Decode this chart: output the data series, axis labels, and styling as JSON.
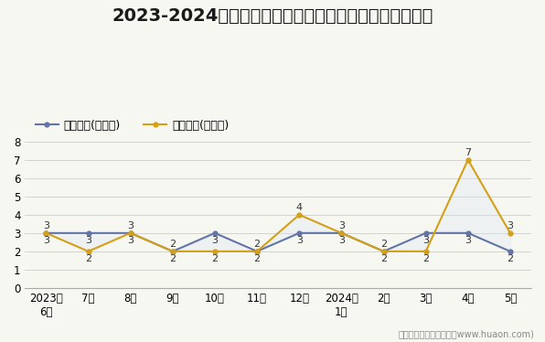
{
  "title": "2023-2024年营口市商品收发货人所在地进、出口额统计",
  "x_labels": [
    "2023年\n6月",
    "7月",
    "8月",
    "9月",
    "10月",
    "11月",
    "12月",
    "2024年\n1月",
    "2月",
    "3月",
    "4月",
    "5月"
  ],
  "export_values": [
    3,
    3,
    3,
    2,
    3,
    2,
    3,
    3,
    2,
    3,
    3,
    2
  ],
  "import_values": [
    3,
    2,
    3,
    2,
    2,
    2,
    4,
    3,
    2,
    2,
    7,
    3
  ],
  "export_label": "出口总额(亿美元)",
  "import_label": "进口总额(亿美元)",
  "export_color": "#6375a8",
  "import_color": "#d4a017",
  "fill_color": "#dce6f5",
  "ylim": [
    0,
    8
  ],
  "yticks": [
    0,
    1,
    2,
    3,
    4,
    5,
    6,
    7,
    8
  ],
  "footer": "制图：华经产业研究院（www.huaon.com)",
  "bg_color": "#f7f7f2",
  "title_fontsize": 14,
  "annot_fontsize": 8,
  "tick_fontsize": 8.5,
  "legend_fontsize": 9
}
